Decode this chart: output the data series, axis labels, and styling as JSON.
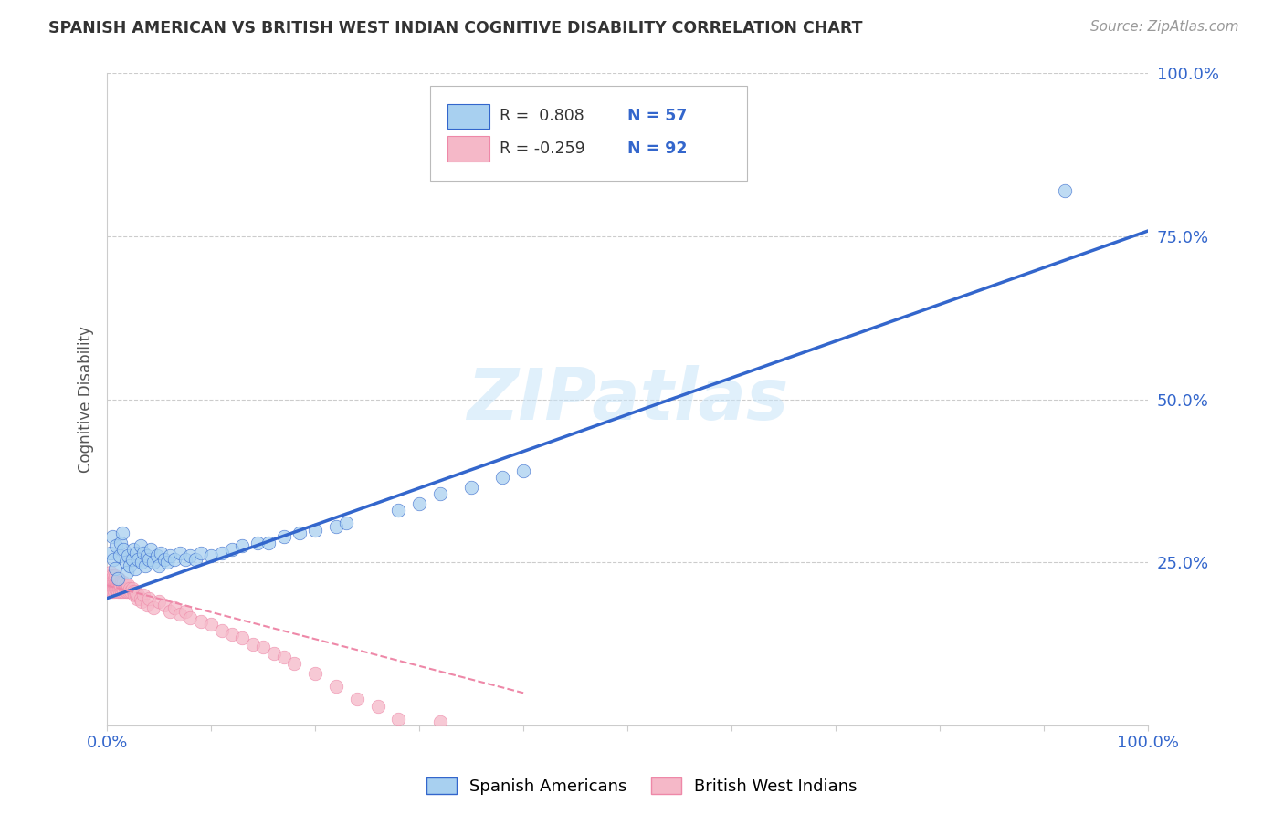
{
  "title": "SPANISH AMERICAN VS BRITISH WEST INDIAN COGNITIVE DISABILITY CORRELATION CHART",
  "source": "Source: ZipAtlas.com",
  "ylabel": "Cognitive Disability",
  "xlim": [
    0.0,
    1.0
  ],
  "ylim": [
    0.0,
    1.0
  ],
  "ytick_labels": [
    "100.0%",
    "75.0%",
    "50.0%",
    "25.0%"
  ],
  "ytick_values": [
    1.0,
    0.75,
    0.5,
    0.25
  ],
  "watermark": "ZIPatlas",
  "legend_blue_R": "R =  0.808",
  "legend_blue_N": "N = 57",
  "legend_pink_R": "R = -0.259",
  "legend_pink_N": "N = 92",
  "blue_color": "#A8D0F0",
  "pink_color": "#F5B8C8",
  "blue_line_color": "#3366CC",
  "pink_line_color": "#EE88A8",
  "grid_color": "#CCCCCC",
  "background_color": "#FFFFFF",
  "blue_scatter_x": [
    0.003,
    0.005,
    0.006,
    0.008,
    0.009,
    0.01,
    0.012,
    0.013,
    0.015,
    0.016,
    0.018,
    0.019,
    0.02,
    0.022,
    0.024,
    0.025,
    0.027,
    0.028,
    0.03,
    0.032,
    0.033,
    0.035,
    0.037,
    0.038,
    0.04,
    0.042,
    0.045,
    0.048,
    0.05,
    0.052,
    0.055,
    0.058,
    0.06,
    0.065,
    0.07,
    0.075,
    0.08,
    0.085,
    0.09,
    0.1,
    0.11,
    0.12,
    0.13,
    0.145,
    0.155,
    0.17,
    0.185,
    0.2,
    0.22,
    0.23,
    0.28,
    0.3,
    0.32,
    0.35,
    0.38,
    0.4,
    0.92
  ],
  "blue_scatter_y": [
    0.265,
    0.29,
    0.255,
    0.24,
    0.275,
    0.225,
    0.26,
    0.28,
    0.295,
    0.27,
    0.25,
    0.235,
    0.26,
    0.245,
    0.255,
    0.27,
    0.24,
    0.265,
    0.255,
    0.275,
    0.25,
    0.265,
    0.245,
    0.26,
    0.255,
    0.27,
    0.25,
    0.26,
    0.245,
    0.265,
    0.255,
    0.25,
    0.26,
    0.255,
    0.265,
    0.255,
    0.26,
    0.255,
    0.265,
    0.26,
    0.265,
    0.27,
    0.275,
    0.28,
    0.28,
    0.29,
    0.295,
    0.3,
    0.305,
    0.31,
    0.33,
    0.34,
    0.355,
    0.365,
    0.38,
    0.39,
    0.82
  ],
  "pink_scatter_x": [
    0.001,
    0.001,
    0.002,
    0.002,
    0.002,
    0.003,
    0.003,
    0.003,
    0.003,
    0.004,
    0.004,
    0.004,
    0.005,
    0.005,
    0.005,
    0.005,
    0.006,
    0.006,
    0.006,
    0.007,
    0.007,
    0.007,
    0.008,
    0.008,
    0.008,
    0.009,
    0.009,
    0.009,
    0.01,
    0.01,
    0.01,
    0.011,
    0.011,
    0.011,
    0.012,
    0.012,
    0.012,
    0.013,
    0.013,
    0.014,
    0.014,
    0.015,
    0.015,
    0.016,
    0.016,
    0.017,
    0.017,
    0.018,
    0.018,
    0.019,
    0.019,
    0.02,
    0.02,
    0.021,
    0.022,
    0.023,
    0.024,
    0.025,
    0.026,
    0.027,
    0.028,
    0.029,
    0.03,
    0.032,
    0.033,
    0.035,
    0.038,
    0.04,
    0.045,
    0.05,
    0.055,
    0.06,
    0.065,
    0.07,
    0.075,
    0.08,
    0.09,
    0.1,
    0.11,
    0.12,
    0.13,
    0.14,
    0.15,
    0.16,
    0.17,
    0.18,
    0.2,
    0.22,
    0.24,
    0.26,
    0.28,
    0.32
  ],
  "pink_scatter_y": [
    0.22,
    0.215,
    0.23,
    0.21,
    0.225,
    0.235,
    0.205,
    0.22,
    0.215,
    0.225,
    0.21,
    0.23,
    0.22,
    0.215,
    0.225,
    0.205,
    0.23,
    0.21,
    0.22,
    0.215,
    0.225,
    0.205,
    0.22,
    0.23,
    0.21,
    0.215,
    0.22,
    0.21,
    0.225,
    0.215,
    0.205,
    0.22,
    0.21,
    0.225,
    0.215,
    0.205,
    0.22,
    0.21,
    0.215,
    0.22,
    0.205,
    0.215,
    0.21,
    0.22,
    0.205,
    0.215,
    0.21,
    0.205,
    0.215,
    0.21,
    0.205,
    0.21,
    0.215,
    0.205,
    0.21,
    0.205,
    0.21,
    0.205,
    0.2,
    0.205,
    0.2,
    0.195,
    0.2,
    0.195,
    0.19,
    0.2,
    0.185,
    0.195,
    0.18,
    0.19,
    0.185,
    0.175,
    0.18,
    0.17,
    0.175,
    0.165,
    0.16,
    0.155,
    0.145,
    0.14,
    0.135,
    0.125,
    0.12,
    0.11,
    0.105,
    0.095,
    0.08,
    0.06,
    0.04,
    0.03,
    0.01,
    0.005
  ],
  "blue_line_x0": 0.0,
  "blue_line_y0": 0.195,
  "blue_line_x1": 1.0,
  "blue_line_y1": 0.758,
  "pink_line_x0": 0.0,
  "pink_line_y0": 0.215,
  "pink_line_x1": 0.4,
  "pink_line_y1": 0.05
}
